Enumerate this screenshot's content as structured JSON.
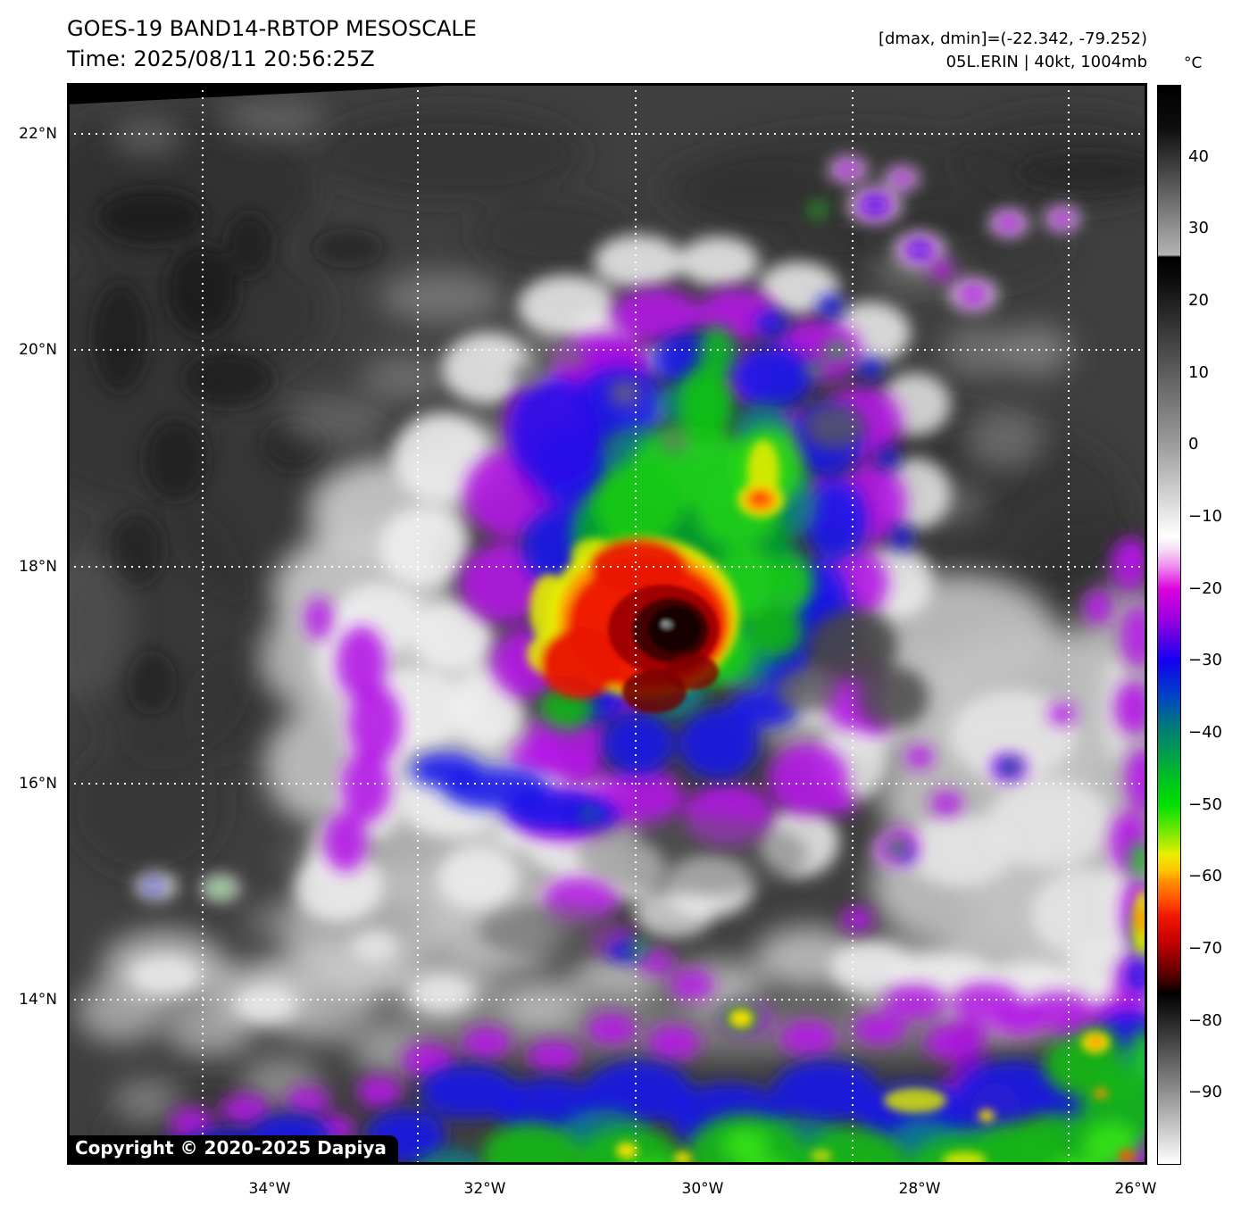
{
  "header": {
    "title": "GOES-19 BAND14-RBTOP MESOSCALE",
    "time_line": "Time: 2025/08/11 20:56:25Z",
    "dmax_dmin_line": "[dmax, dmin]=(-22.342, -79.252)",
    "storm_line": "05L.ERIN | 40kt, 1004mb"
  },
  "map": {
    "copyright": "Copyright © 2020-2025 Dapiya",
    "x_tick_labels": [
      "34°W",
      "32°W",
      "30°W",
      "28°W",
      "26°W"
    ],
    "y_tick_labels": [
      "22°N",
      "20°N",
      "18°N",
      "16°N",
      "14°N"
    ]
  },
  "colorbar": {
    "unit_label": "°C",
    "tick_labels": [
      "40",
      "30",
      "20",
      "10",
      "0",
      "−10",
      "−20",
      "−30",
      "−40",
      "−50",
      "−60",
      "−70",
      "−80",
      "−90"
    ]
  },
  "chart_data": {
    "type": "heatmap",
    "title": "GOES-19 BAND14-RBTOP MESOSCALE",
    "time": "2025/08/11 20:56:25Z",
    "storm": {
      "designation": "05L",
      "name": "ERIN",
      "intensity_kt": 40,
      "pressure_mb": 1004
    },
    "dmax_c": -22.342,
    "dmin_c": -79.252,
    "x_axis": {
      "label_format": "degrees West longitude",
      "ticks": [
        34,
        32,
        30,
        28,
        26
      ]
    },
    "y_axis": {
      "label_format": "degrees North latitude",
      "ticks": [
        22,
        20,
        18,
        16,
        14
      ]
    },
    "colorbar": {
      "unit": "°C",
      "ticks": [
        40,
        30,
        20,
        10,
        0,
        -10,
        -20,
        -30,
        -40,
        -50,
        -60,
        -70,
        -80,
        -90
      ],
      "top_value": 50,
      "bottom_value": -100
    },
    "grid": true,
    "description": "Color-enhanced infrared brightness temperature image of Tropical Storm Erin; coldest cloud tops (red/black, below -65C) near 17.5N 29.7W, convective band along the bottom of the sector."
  }
}
